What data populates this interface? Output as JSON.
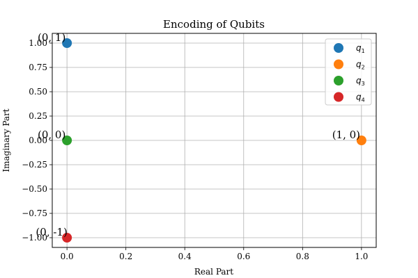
{
  "chart_data": {
    "type": "scatter",
    "title": "Encoding of Qubits",
    "xlabel": "Real Part",
    "ylabel": "Imaginary Part",
    "xlim": [
      -0.05,
      1.05
    ],
    "ylim": [
      -1.1,
      1.1
    ],
    "x_ticks": [
      "0.0",
      "0.2",
      "0.4",
      "0.6",
      "0.8",
      "1.0"
    ],
    "y_ticks": [
      "1.00",
      "0.75",
      "0.50",
      "0.25",
      "0.00",
      "−0.25",
      "−0.50",
      "−0.75",
      "−1.00"
    ],
    "grid": true,
    "legend_placement": "top-right",
    "series": [
      {
        "name": "q",
        "subscript": "1",
        "color": "#1f77b4",
        "x": 0,
        "y": 1,
        "annotation": "(0, 1)"
      },
      {
        "name": "q",
        "subscript": "2",
        "color": "#ff7f0e",
        "x": 1,
        "y": 0,
        "annotation": "(1, 0)"
      },
      {
        "name": "q",
        "subscript": "3",
        "color": "#2ca02c",
        "x": 0,
        "y": 0,
        "annotation": "(0, 0)"
      },
      {
        "name": "q",
        "subscript": "4",
        "color": "#d62728",
        "x": 0,
        "y": -1,
        "annotation": "(0, -1)"
      }
    ]
  }
}
